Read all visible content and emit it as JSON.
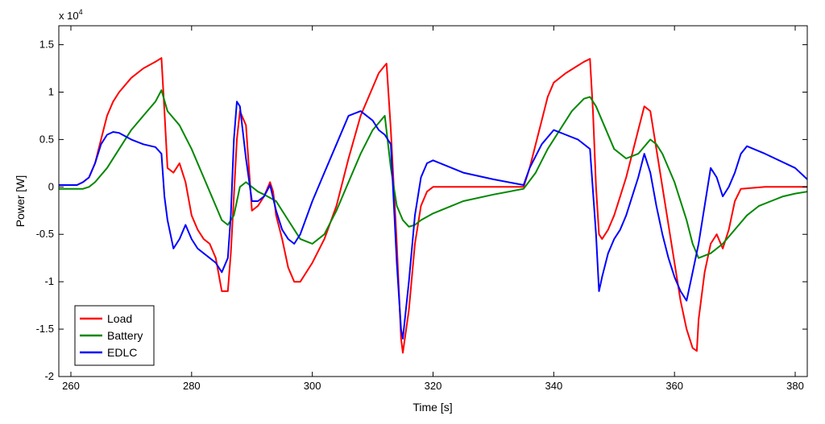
{
  "chart_data": {
    "type": "line",
    "xlabel": "Time [s]",
    "ylabel": "Power [W]",
    "exponent_label": "x 10",
    "exponent_power": "4",
    "xlim": [
      258,
      382
    ],
    "ylim": [
      -2,
      1.7
    ],
    "y_scale_factor": 10000,
    "xticks": [
      260,
      280,
      300,
      320,
      340,
      360,
      380
    ],
    "yticks": [
      -2,
      -1.5,
      -1,
      -0.5,
      0,
      0.5,
      1,
      1.5
    ],
    "ytick_labels": [
      "-2",
      "-1.5",
      "-1",
      "-0.5",
      "0",
      "0.5",
      "1",
      "1.5"
    ],
    "grid": false,
    "legend_position": "bottom-left",
    "series": [
      {
        "name": "Load",
        "color": "#ff0000",
        "x": [
          258,
          261,
          262,
          263,
          264,
          265,
          266,
          267,
          268,
          270,
          272,
          274,
          275,
          275.5,
          276,
          277,
          278,
          279,
          280,
          281,
          282,
          283,
          284,
          285,
          286,
          286.5,
          287,
          287.5,
          288,
          289,
          289.5,
          290,
          291,
          292,
          293,
          293.5,
          294,
          295,
          296,
          297,
          298,
          300,
          302,
          304,
          306,
          308,
          310,
          311,
          312,
          312.3,
          313,
          314,
          314.7,
          315,
          316,
          317,
          318,
          319,
          320,
          325,
          330,
          335,
          336,
          337,
          338,
          339,
          340,
          342,
          344,
          345,
          346,
          346.5,
          347,
          347.5,
          348,
          349,
          350,
          351,
          352,
          353,
          354,
          355,
          356,
          357,
          358,
          359,
          360,
          361,
          362,
          363,
          363.7,
          364,
          365,
          366,
          367,
          368,
          369,
          370,
          371,
          375,
          380,
          382
        ],
        "y": [
          0.02,
          0.02,
          0.05,
          0.1,
          0.25,
          0.5,
          0.75,
          0.9,
          1.0,
          1.15,
          1.25,
          1.32,
          1.36,
          0.8,
          0.2,
          0.15,
          0.25,
          0.05,
          -0.3,
          -0.45,
          -0.55,
          -0.6,
          -0.75,
          -1.1,
          -1.1,
          -0.7,
          -0.1,
          0.5,
          0.8,
          0.65,
          0.2,
          -0.25,
          -0.2,
          -0.1,
          0.05,
          -0.05,
          -0.3,
          -0.55,
          -0.85,
          -1.0,
          -1.0,
          -0.8,
          -0.55,
          -0.2,
          0.3,
          0.75,
          1.05,
          1.2,
          1.28,
          1.3,
          0.6,
          -0.6,
          -1.6,
          -1.75,
          -1.3,
          -0.6,
          -0.2,
          -0.05,
          0,
          0,
          0,
          0,
          0.2,
          0.45,
          0.7,
          0.95,
          1.1,
          1.2,
          1.28,
          1.32,
          1.35,
          0.8,
          0,
          -0.5,
          -0.55,
          -0.45,
          -0.3,
          -0.1,
          0.1,
          0.35,
          0.6,
          0.85,
          0.8,
          0.4,
          0,
          -0.4,
          -0.8,
          -1.2,
          -1.5,
          -1.7,
          -1.73,
          -1.4,
          -0.9,
          -0.6,
          -0.5,
          -0.65,
          -0.45,
          -0.15,
          -0.02,
          0,
          0,
          0
        ]
      },
      {
        "name": "Battery",
        "color": "#008800",
        "x": [
          258,
          261,
          262,
          263,
          264,
          266,
          268,
          270,
          272,
          274,
          275,
          276,
          278,
          280,
          282,
          284,
          285,
          286,
          287,
          288,
          289,
          290,
          291,
          292,
          294,
          296,
          298,
          300,
          302,
          304,
          306,
          308,
          310,
          312,
          313,
          314,
          315,
          316,
          317,
          318,
          320,
          325,
          330,
          335,
          337,
          339,
          341,
          343,
          345,
          346,
          347,
          348,
          350,
          352,
          354,
          356,
          357,
          358,
          360,
          362,
          363,
          364,
          366,
          368,
          370,
          372,
          374,
          376,
          378,
          380,
          382
        ],
        "y": [
          -0.02,
          -0.02,
          -0.02,
          0,
          0.05,
          0.2,
          0.4,
          0.6,
          0.75,
          0.9,
          1.02,
          0.8,
          0.65,
          0.4,
          0.1,
          -0.2,
          -0.35,
          -0.4,
          -0.3,
          0.0,
          0.05,
          0.0,
          -0.05,
          -0.08,
          -0.15,
          -0.35,
          -0.55,
          -0.6,
          -0.5,
          -0.25,
          0.05,
          0.35,
          0.6,
          0.75,
          0.2,
          -0.2,
          -0.35,
          -0.42,
          -0.4,
          -0.35,
          -0.28,
          -0.15,
          -0.08,
          -0.02,
          0.15,
          0.4,
          0.6,
          0.8,
          0.93,
          0.95,
          0.85,
          0.7,
          0.4,
          0.3,
          0.35,
          0.5,
          0.45,
          0.35,
          0.05,
          -0.35,
          -0.6,
          -0.75,
          -0.7,
          -0.6,
          -0.45,
          -0.3,
          -0.2,
          -0.15,
          -0.1,
          -0.07,
          -0.05
        ]
      },
      {
        "name": "EDLC",
        "color": "#0000ff",
        "x": [
          258,
          261,
          262,
          263,
          264,
          265,
          266,
          267,
          268,
          270,
          272,
          274,
          275,
          275.5,
          276,
          277,
          278,
          279,
          280,
          281,
          282,
          283,
          284,
          285,
          286,
          286.5,
          287,
          287.5,
          288,
          289,
          290,
          291,
          292,
          293,
          294,
          295,
          296,
          297,
          298,
          300,
          302,
          304,
          306,
          308,
          310,
          311,
          312,
          313,
          314,
          314.7,
          315,
          316,
          317,
          318,
          319,
          320,
          325,
          330,
          335,
          336,
          338,
          340,
          342,
          344,
          346,
          347,
          347.5,
          348,
          349,
          350,
          351,
          352,
          353,
          354,
          355,
          356,
          357,
          358,
          359,
          360,
          361,
          362,
          363,
          364,
          365,
          366,
          367,
          368,
          369,
          370,
          371,
          372,
          375,
          380,
          382
        ],
        "y": [
          0.02,
          0.02,
          0.05,
          0.1,
          0.25,
          0.45,
          0.55,
          0.58,
          0.57,
          0.5,
          0.45,
          0.42,
          0.35,
          -0.1,
          -0.35,
          -0.65,
          -0.55,
          -0.4,
          -0.55,
          -0.65,
          -0.7,
          -0.75,
          -0.8,
          -0.9,
          -0.75,
          -0.3,
          0.5,
          0.9,
          0.85,
          0.3,
          -0.15,
          -0.15,
          -0.1,
          0.02,
          -0.25,
          -0.45,
          -0.55,
          -0.6,
          -0.5,
          -0.15,
          0.15,
          0.45,
          0.75,
          0.8,
          0.7,
          0.6,
          0.55,
          0.45,
          -0.8,
          -1.5,
          -1.6,
          -1.0,
          -0.3,
          0.1,
          0.25,
          0.28,
          0.15,
          0.08,
          0.02,
          0.2,
          0.45,
          0.6,
          0.55,
          0.5,
          0.4,
          -0.5,
          -1.1,
          -0.95,
          -0.7,
          -0.55,
          -0.45,
          -0.3,
          -0.1,
          0.1,
          0.35,
          0.15,
          -0.2,
          -0.5,
          -0.75,
          -0.95,
          -1.1,
          -1.2,
          -0.9,
          -0.6,
          -0.2,
          0.2,
          0.1,
          -0.1,
          0.0,
          0.15,
          0.35,
          0.43,
          0.35,
          0.2,
          0.08
        ]
      }
    ]
  }
}
